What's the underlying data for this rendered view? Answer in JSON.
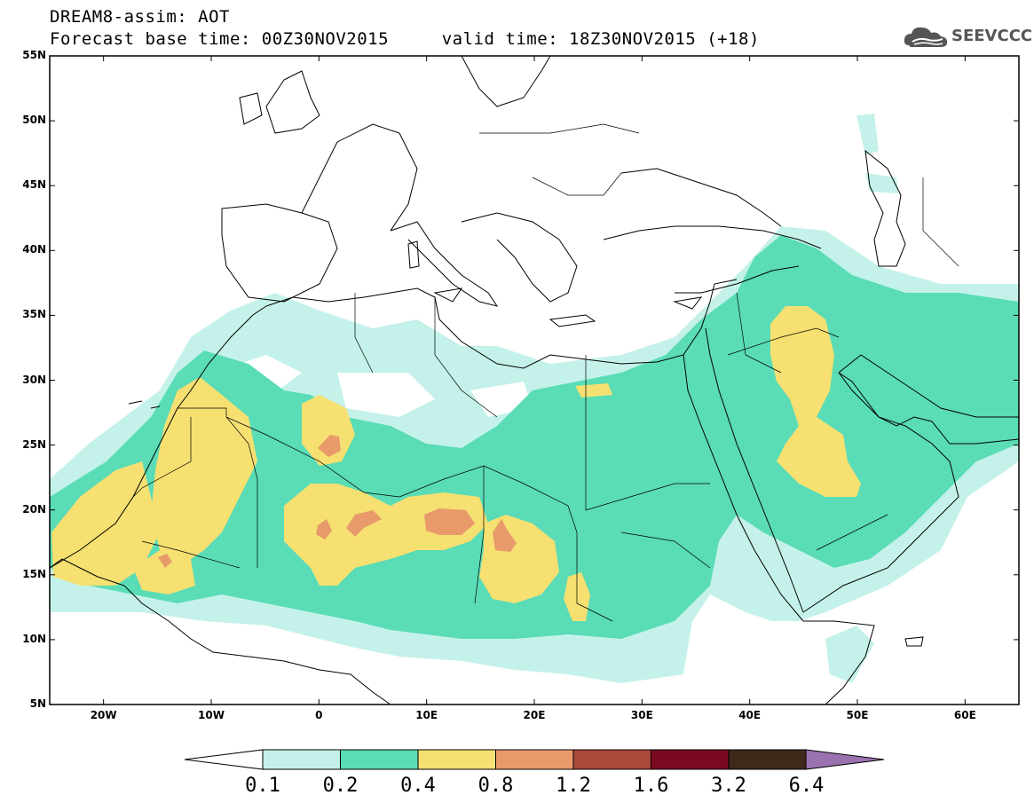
{
  "title": {
    "line1": "DREAM8-assim: AOT",
    "line2": "Forecast base time: 00Z30NOV2015     valid time: 18Z30NOV2015 (+18)"
  },
  "logo": {
    "text": "SEEVCCC",
    "icon": "cloud-icon"
  },
  "map": {
    "lon_range": [
      -25,
      65
    ],
    "lat_range": [
      5,
      55
    ],
    "lon_ticks": [
      "20W",
      "10W",
      "0",
      "10E",
      "20E",
      "30E",
      "40E",
      "50E",
      "60E"
    ],
    "lat_ticks": [
      "55N",
      "50N",
      "45N",
      "40N",
      "35N",
      "30N",
      "25N",
      "20N",
      "15N",
      "10N",
      "5N"
    ]
  },
  "colorbar": {
    "labels": [
      "0.1",
      "0.2",
      "0.4",
      "0.8",
      "1.2",
      "1.6",
      "3.2",
      "6.4"
    ],
    "colors": [
      "#c4f2ea",
      "#5adcb6",
      "#f5e071",
      "#e89a6a",
      "#a8493c",
      "#7a0a22",
      "#3e2a1a",
      "#9b72b0"
    ],
    "below_color": "#ffffff"
  }
}
